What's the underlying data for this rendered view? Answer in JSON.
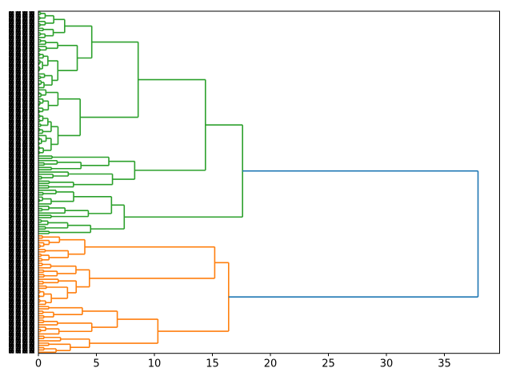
{
  "figure": {
    "background": "#ffffff",
    "kind": "hierarchical clustering dendrogram, horizontal (leaves on left, root on right)"
  },
  "chart_data": {
    "type": "dendrogram",
    "title": "",
    "xlabel": "",
    "ylabel": "",
    "grid": false,
    "legend": null,
    "x_axis": {
      "ticks": [
        0,
        5,
        10,
        15,
        20,
        25,
        30,
        35
      ],
      "lim": [
        0,
        39.76
      ]
    },
    "y_axis": {
      "leaf_count": 150,
      "labels": "dense overlapping leaf labels, illegible (appears as 4 speckled black stripes)",
      "stripe_count": 4
    },
    "colors": {
      "above_threshold_link": "#1f77b4",
      "cluster_top": "#2ca02c",
      "cluster_bottom": "#ff7f0e",
      "axis": "#000000",
      "background": "#ffffff"
    },
    "linkage_tree": {
      "height": 37.9,
      "color": "#1f77b4",
      "children": [
        {
          "height": 17.6,
          "color": "#2ca02c",
          "children": [
            {
              "height": 14.4,
              "children": [
                {
                  "height": 8.6,
                  "children": [
                    {
                      "height": 4.6,
                      "leaves": 34
                    },
                    {
                      "height": 3.6,
                      "leaves": 29
                    }
                  ]
                },
                {
                  "height": 8.3,
                  "leaves": 15
                }
              ]
            },
            {
              "height": 7.4,
              "children": [
                {
                  "height": 6.3,
                  "leaves": 13
                },
                {
                  "height": 4.5,
                  "leaves": 7
                }
              ]
            }
          ]
        },
        {
          "height": 16.4,
          "color": "#ff7f0e",
          "children": [
            {
              "height": 15.2,
              "children": [
                {
                  "height": 4.0,
                  "leaves": 12
                },
                {
                  "height": 4.4,
                  "leaves": 19
                }
              ]
            },
            {
              "height": 10.3,
              "children": [
                {
                  "height": 6.8,
                  "leaves": 13
                },
                {
                  "height": 4.4,
                  "leaves": 8
                }
              ]
            }
          ]
        }
      ]
    },
    "procedural": {
      "seed": 1337,
      "note": "merges finer than the listed nodes are visually illegible in the source; regenerated deterministically from seed"
    }
  }
}
